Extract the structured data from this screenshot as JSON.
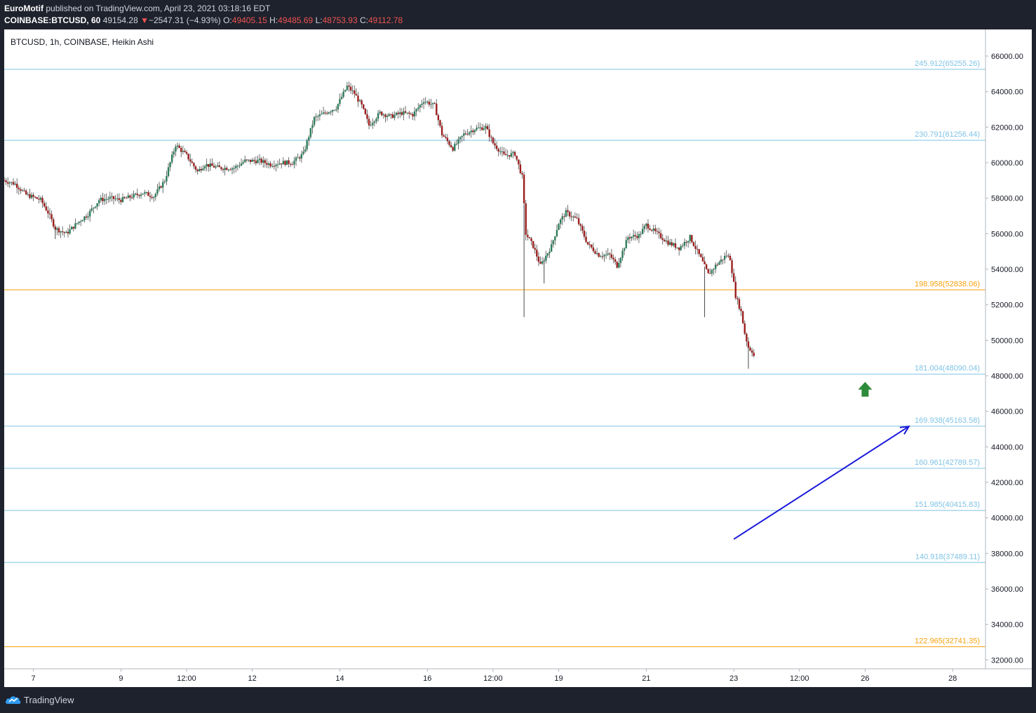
{
  "header": {
    "author": "EuroMotif",
    "published_text": "published on TradingView.com, April 23, 2021 03:18:16 EDT",
    "symbol": "COINBASE:BTCUSD, 60",
    "last": "49154.28",
    "change_arrow": "▼",
    "change": "−2547.31 (−4.93%)",
    "o_label": "O:",
    "o": "49405.15",
    "h_label": "H:",
    "h": "49485.69",
    "l_label": "L:",
    "l": "48753.93",
    "c_label": "C:",
    "c": "49112.78"
  },
  "footer": {
    "brand": "TradingView",
    "logo_icon": "tradingview-cloud-icon"
  },
  "colors": {
    "bull": "#26a69a",
    "bear": "#ef5350",
    "fib_blue": "#7fc3e6",
    "fib_orange": "#f7a10f",
    "arrow_blue": "#1a1adb",
    "arrow_green": "#2e8b3a"
  },
  "chart_data": {
    "type": "candlestick",
    "title": "BTCUSD, 1h, COINBASE, Heikin Ashi",
    "y_axis_side": "right",
    "ylim": [
      31500,
      67500
    ],
    "yticks": [
      32000,
      34000,
      36000,
      38000,
      40000,
      42000,
      44000,
      46000,
      48000,
      50000,
      52000,
      54000,
      56000,
      58000,
      60000,
      62000,
      64000,
      66000
    ],
    "ytick_labels": [
      "32000.00",
      "34000.00",
      "36000.00",
      "38000.00",
      "40000.00",
      "42000.00",
      "44000.00",
      "46000.00",
      "48000.00",
      "50000.00",
      "52000.00",
      "54000.00",
      "56000.00",
      "58000.00",
      "60000.00",
      "62000.00",
      "64000.00",
      "66000.00"
    ],
    "xlim": [
      "2021-04-06T08:00",
      "2021-04-28T18:00"
    ],
    "xticks": [
      {
        "t": "2021-04-07T00:00",
        "label": "7"
      },
      {
        "t": "2021-04-09T00:00",
        "label": "9"
      },
      {
        "t": "2021-04-10T12:00",
        "label": "12:00"
      },
      {
        "t": "2021-04-12T00:00",
        "label": "12"
      },
      {
        "t": "2021-04-14T00:00",
        "label": "14"
      },
      {
        "t": "2021-04-16T00:00",
        "label": "16"
      },
      {
        "t": "2021-04-17T12:00",
        "label": "12:00"
      },
      {
        "t": "2021-04-19T00:00",
        "label": "19"
      },
      {
        "t": "2021-04-21T00:00",
        "label": "21"
      },
      {
        "t": "2021-04-23T00:00",
        "label": "23"
      },
      {
        "t": "2021-04-24T12:00",
        "label": "12:00"
      },
      {
        "t": "2021-04-26T00:00",
        "label": "26"
      },
      {
        "t": "2021-04-28T00:00",
        "label": "28"
      }
    ],
    "price_path": [
      [
        "2021-04-06T08:00",
        59000
      ],
      [
        "2021-04-06T14:00",
        58800
      ],
      [
        "2021-04-06T20:00",
        58200
      ],
      [
        "2021-04-07T04:00",
        57900
      ],
      [
        "2021-04-07T08:00",
        57200
      ],
      [
        "2021-04-07T12:00",
        56300
      ],
      [
        "2021-04-07T18:00",
        56000
      ],
      [
        "2021-04-08T00:00",
        56600
      ],
      [
        "2021-04-08T06:00",
        57100
      ],
      [
        "2021-04-08T12:00",
        57900
      ],
      [
        "2021-04-08T18:00",
        58000
      ],
      [
        "2021-04-09T00:00",
        57900
      ],
      [
        "2021-04-09T06:00",
        58100
      ],
      [
        "2021-04-09T12:00",
        58300
      ],
      [
        "2021-04-09T18:00",
        58100
      ],
      [
        "2021-04-10T00:00",
        59000
      ],
      [
        "2021-04-10T06:00",
        61000
      ],
      [
        "2021-04-10T12:00",
        60400
      ],
      [
        "2021-04-10T18:00",
        59500
      ],
      [
        "2021-04-10T22:00",
        59900
      ],
      [
        "2021-04-11T06:00",
        59700
      ],
      [
        "2021-04-11T14:00",
        59700
      ],
      [
        "2021-04-11T20:00",
        60100
      ],
      [
        "2021-04-12T04:00",
        60100
      ],
      [
        "2021-04-12T10:00",
        59900
      ],
      [
        "2021-04-12T16:00",
        60000
      ],
      [
        "2021-04-12T22:00",
        60000
      ],
      [
        "2021-04-13T04:00",
        60500
      ],
      [
        "2021-04-13T10:00",
        62500
      ],
      [
        "2021-04-13T16:00",
        62800
      ],
      [
        "2021-04-13T22:00",
        63100
      ],
      [
        "2021-04-14T04:00",
        64300
      ],
      [
        "2021-04-14T08:00",
        63900
      ],
      [
        "2021-04-14T12:00",
        63200
      ],
      [
        "2021-04-14T16:00",
        62100
      ],
      [
        "2021-04-14T22:00",
        62800
      ],
      [
        "2021-04-15T04:00",
        62600
      ],
      [
        "2021-04-15T10:00",
        62800
      ],
      [
        "2021-04-15T16:00",
        62700
      ],
      [
        "2021-04-15T22:00",
        63500
      ],
      [
        "2021-04-16T04:00",
        63200
      ],
      [
        "2021-04-16T08:00",
        61600
      ],
      [
        "2021-04-16T14:00",
        60800
      ],
      [
        "2021-04-16T20:00",
        61600
      ],
      [
        "2021-04-17T02:00",
        61900
      ],
      [
        "2021-04-17T08:00",
        62000
      ],
      [
        "2021-04-17T12:00",
        61100
      ],
      [
        "2021-04-17T18:00",
        60400
      ],
      [
        "2021-04-18T00:00",
        60500
      ],
      [
        "2021-04-18T04:00",
        59200
      ],
      [
        "2021-04-18T06:00",
        56000
      ],
      [
        "2021-04-18T10:00",
        55300
      ],
      [
        "2021-04-18T14:00",
        54200
      ],
      [
        "2021-04-18T20:00",
        55300
      ],
      [
        "2021-04-19T00:00",
        56600
      ],
      [
        "2021-04-19T04:00",
        57200
      ],
      [
        "2021-04-19T10:00",
        56800
      ],
      [
        "2021-04-19T16:00",
        55400
      ],
      [
        "2021-04-19T22:00",
        54800
      ],
      [
        "2021-04-20T04:00",
        54800
      ],
      [
        "2021-04-20T08:00",
        54200
      ],
      [
        "2021-04-20T14:00",
        55800
      ],
      [
        "2021-04-20T20:00",
        55900
      ],
      [
        "2021-04-21T00:00",
        56500
      ],
      [
        "2021-04-21T06:00",
        56000
      ],
      [
        "2021-04-21T12:00",
        55500
      ],
      [
        "2021-04-21T18:00",
        55200
      ],
      [
        "2021-04-22T00:00",
        55800
      ],
      [
        "2021-04-22T06:00",
        54600
      ],
      [
        "2021-04-22T10:00",
        53700
      ],
      [
        "2021-04-22T14:00",
        54200
      ],
      [
        "2021-04-22T20:00",
        54800
      ],
      [
        "2021-04-22T22:00",
        54600
      ],
      [
        "2021-04-23T01:00",
        52500
      ],
      [
        "2021-04-23T04:00",
        51600
      ],
      [
        "2021-04-23T06:00",
        50400
      ],
      [
        "2021-04-23T08:00",
        49600
      ],
      [
        "2021-04-23T10:00",
        49400
      ],
      [
        "2021-04-23T11:00",
        49112.78
      ]
    ],
    "wick_spikes": [
      {
        "t": "2021-04-18T05:00",
        "low": 51300
      },
      {
        "t": "2021-04-22T08:00",
        "low": 51300
      },
      {
        "t": "2021-04-23T08:00",
        "low": 48400
      },
      {
        "t": "2021-04-07T12:00",
        "low": 55700
      },
      {
        "t": "2021-04-18T16:00",
        "low": 53200
      }
    ],
    "fib_levels": [
      {
        "ratio": 245.912,
        "price": 65255.26,
        "label": "245.912(65255.26)",
        "color": "fib_blue"
      },
      {
        "ratio": 230.791,
        "price": 61256.44,
        "label": "230.791(61256.44)",
        "color": "fib_blue"
      },
      {
        "ratio": 198.958,
        "price": 52838.06,
        "label": "198.958(52838.06)",
        "color": "fib_orange"
      },
      {
        "ratio": 181.004,
        "price": 48090.04,
        "label": "181.004(48090.04)",
        "color": "fib_blue"
      },
      {
        "ratio": 169.938,
        "price": 45163.58,
        "label": "169.938(45163.58)",
        "color": "fib_blue"
      },
      {
        "ratio": 160.961,
        "price": 42789.57,
        "label": "160.961(42789.57)",
        "color": "fib_blue"
      },
      {
        "ratio": 151.985,
        "price": 40415.83,
        "label": "151.985(40415.83)",
        "color": "fib_blue"
      },
      {
        "ratio": 140.918,
        "price": 37489.11,
        "label": "140.918(37489.11)",
        "color": "fib_blue"
      },
      {
        "ratio": 122.965,
        "price": 32741.35,
        "label": "122.965(32741.35)",
        "color": "fib_orange"
      }
    ],
    "annotations": [
      {
        "type": "arrow",
        "from": [
          "2021-04-23T00:00",
          38800
        ],
        "to": [
          "2021-04-27T00:00",
          45150
        ],
        "color": "arrow_blue"
      },
      {
        "type": "up-arrow-marker",
        "at": [
          "2021-04-26T00:00",
          47300
        ],
        "color": "arrow_green"
      }
    ]
  }
}
